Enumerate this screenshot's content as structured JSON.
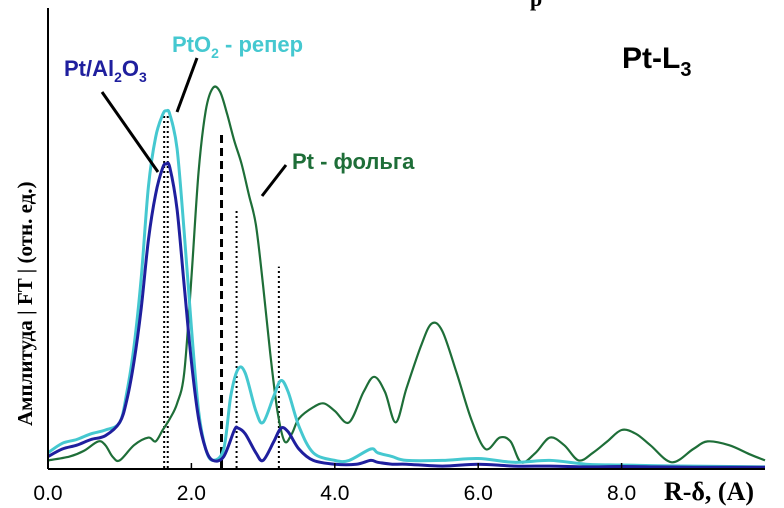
{
  "chart_data": {
    "type": "line",
    "edge": {
      "label": "Pt-L",
      "subscript": "3"
    },
    "top_cut_text": "p",
    "ylabel": "Амплитуда | FT | (отн. ед.)",
    "xlabel": "R-δ, (A)",
    "x_ticks": [
      "0.0",
      "2.0",
      "4.0",
      "6.0",
      "8.0"
    ],
    "xlim": [
      0.0,
      10.0
    ],
    "ylim": [
      0.0,
      1.0
    ],
    "colors": {
      "Pt/Al2O3": "#1f1f9e",
      "PtO2": "#45c8d0",
      "foil": "#1e6e38",
      "axis": "#000000"
    },
    "series": [
      {
        "name": "Pt/Al2O3",
        "label_parts": {
          "main": "Pt/Al",
          "sub1": "2",
          "mid": "O",
          "sub2": "3"
        },
        "color_key": "Pt/Al2O3",
        "x": [
          0.0,
          0.2,
          0.4,
          0.6,
          0.8,
          1.0,
          1.1,
          1.2,
          1.3,
          1.4,
          1.5,
          1.6,
          1.65,
          1.7,
          1.8,
          1.9,
          2.0,
          2.1,
          2.2,
          2.3,
          2.45,
          2.6,
          2.65,
          2.75,
          2.9,
          3.0,
          3.15,
          3.25,
          3.35,
          3.5,
          3.7,
          4.0,
          4.3,
          4.5,
          4.6,
          4.8,
          5.0,
          5.5,
          6.0,
          6.5,
          7.0,
          7.5,
          8.0,
          8.5,
          9.0,
          9.5,
          10.0
        ],
        "y": [
          0.03,
          0.05,
          0.06,
          0.075,
          0.085,
          0.12,
          0.18,
          0.28,
          0.42,
          0.6,
          0.72,
          0.79,
          0.8,
          0.79,
          0.68,
          0.48,
          0.28,
          0.13,
          0.05,
          0.02,
          0.03,
          0.1,
          0.105,
          0.09,
          0.04,
          0.02,
          0.07,
          0.105,
          0.095,
          0.05,
          0.02,
          0.01,
          0.01,
          0.02,
          0.015,
          0.01,
          0.01,
          0.005,
          0.01,
          0.005,
          0.005,
          0.003,
          0.004,
          0.003,
          0.002,
          0.002,
          0.002
        ]
      },
      {
        "name": "PtO2 - репер",
        "label_parts": {
          "main": "PtO",
          "sub1": "2",
          "rest": " - репер"
        },
        "color_key": "PtO2",
        "x": [
          0.0,
          0.2,
          0.4,
          0.6,
          0.8,
          1.0,
          1.1,
          1.2,
          1.3,
          1.4,
          1.5,
          1.6,
          1.65,
          1.7,
          1.8,
          1.9,
          2.0,
          2.1,
          2.2,
          2.3,
          2.45,
          2.55,
          2.65,
          2.75,
          2.9,
          3.0,
          3.15,
          3.25,
          3.35,
          3.5,
          3.7,
          4.0,
          4.2,
          4.5,
          4.6,
          4.8,
          5.0,
          5.5,
          6.0,
          6.5,
          7.0,
          7.5,
          8.0,
          8.5,
          9.0,
          9.5,
          10.0
        ],
        "y": [
          0.04,
          0.065,
          0.075,
          0.09,
          0.1,
          0.12,
          0.2,
          0.32,
          0.5,
          0.74,
          0.87,
          0.93,
          0.94,
          0.93,
          0.84,
          0.62,
          0.37,
          0.15,
          0.05,
          0.02,
          0.05,
          0.19,
          0.26,
          0.25,
          0.15,
          0.12,
          0.19,
          0.23,
          0.2,
          0.11,
          0.04,
          0.02,
          0.02,
          0.05,
          0.04,
          0.03,
          0.02,
          0.02,
          0.025,
          0.015,
          0.02,
          0.01,
          0.008,
          0.006,
          0.005,
          0.004,
          0.003
        ]
      },
      {
        "name": "Pt - фольга",
        "color_key": "foil",
        "x": [
          0.0,
          0.3,
          0.5,
          0.7,
          0.8,
          0.9,
          1.0,
          1.2,
          1.4,
          1.5,
          1.6,
          1.7,
          1.8,
          1.9,
          2.0,
          2.1,
          2.2,
          2.3,
          2.4,
          2.5,
          2.6,
          2.7,
          2.8,
          2.9,
          3.0,
          3.1,
          3.2,
          3.3,
          3.4,
          3.5,
          3.7,
          3.85,
          4.0,
          4.2,
          4.4,
          4.55,
          4.7,
          4.85,
          5.0,
          5.2,
          5.35,
          5.5,
          5.7,
          5.9,
          6.1,
          6.3,
          6.45,
          6.6,
          6.8,
          7.0,
          7.2,
          7.4,
          7.6,
          7.8,
          8.0,
          8.2,
          8.4,
          8.7,
          9.0,
          9.2,
          9.5,
          9.8,
          10.0
        ],
        "y": [
          0.02,
          0.03,
          0.045,
          0.07,
          0.06,
          0.03,
          0.02,
          0.06,
          0.08,
          0.07,
          0.1,
          0.13,
          0.17,
          0.25,
          0.5,
          0.78,
          0.94,
          1.0,
          0.99,
          0.93,
          0.86,
          0.8,
          0.72,
          0.64,
          0.48,
          0.3,
          0.15,
          0.07,
          0.09,
          0.13,
          0.16,
          0.17,
          0.15,
          0.12,
          0.2,
          0.24,
          0.2,
          0.12,
          0.21,
          0.32,
          0.38,
          0.36,
          0.25,
          0.13,
          0.05,
          0.08,
          0.07,
          0.015,
          0.04,
          0.08,
          0.06,
          0.02,
          0.04,
          0.07,
          0.1,
          0.09,
          0.06,
          0.015,
          0.05,
          0.07,
          0.06,
          0.035,
          0.02
        ]
      }
    ],
    "reference_lines": [
      {
        "x": 1.62,
        "color_key": "axis",
        "style": "dotted",
        "y_top": 0.93
      },
      {
        "x": 1.67,
        "color_key": "axis",
        "style": "dotted",
        "y_top": 0.93
      },
      {
        "x": 2.42,
        "color_key": "axis",
        "style": "dashed",
        "y_top": 0.88
      },
      {
        "x": 2.63,
        "color_key": "axis",
        "style": "dotted",
        "y_top": 0.68
      },
      {
        "x": 3.22,
        "color_key": "axis",
        "style": "dotted",
        "y_top": 0.53
      }
    ],
    "grid": false
  }
}
